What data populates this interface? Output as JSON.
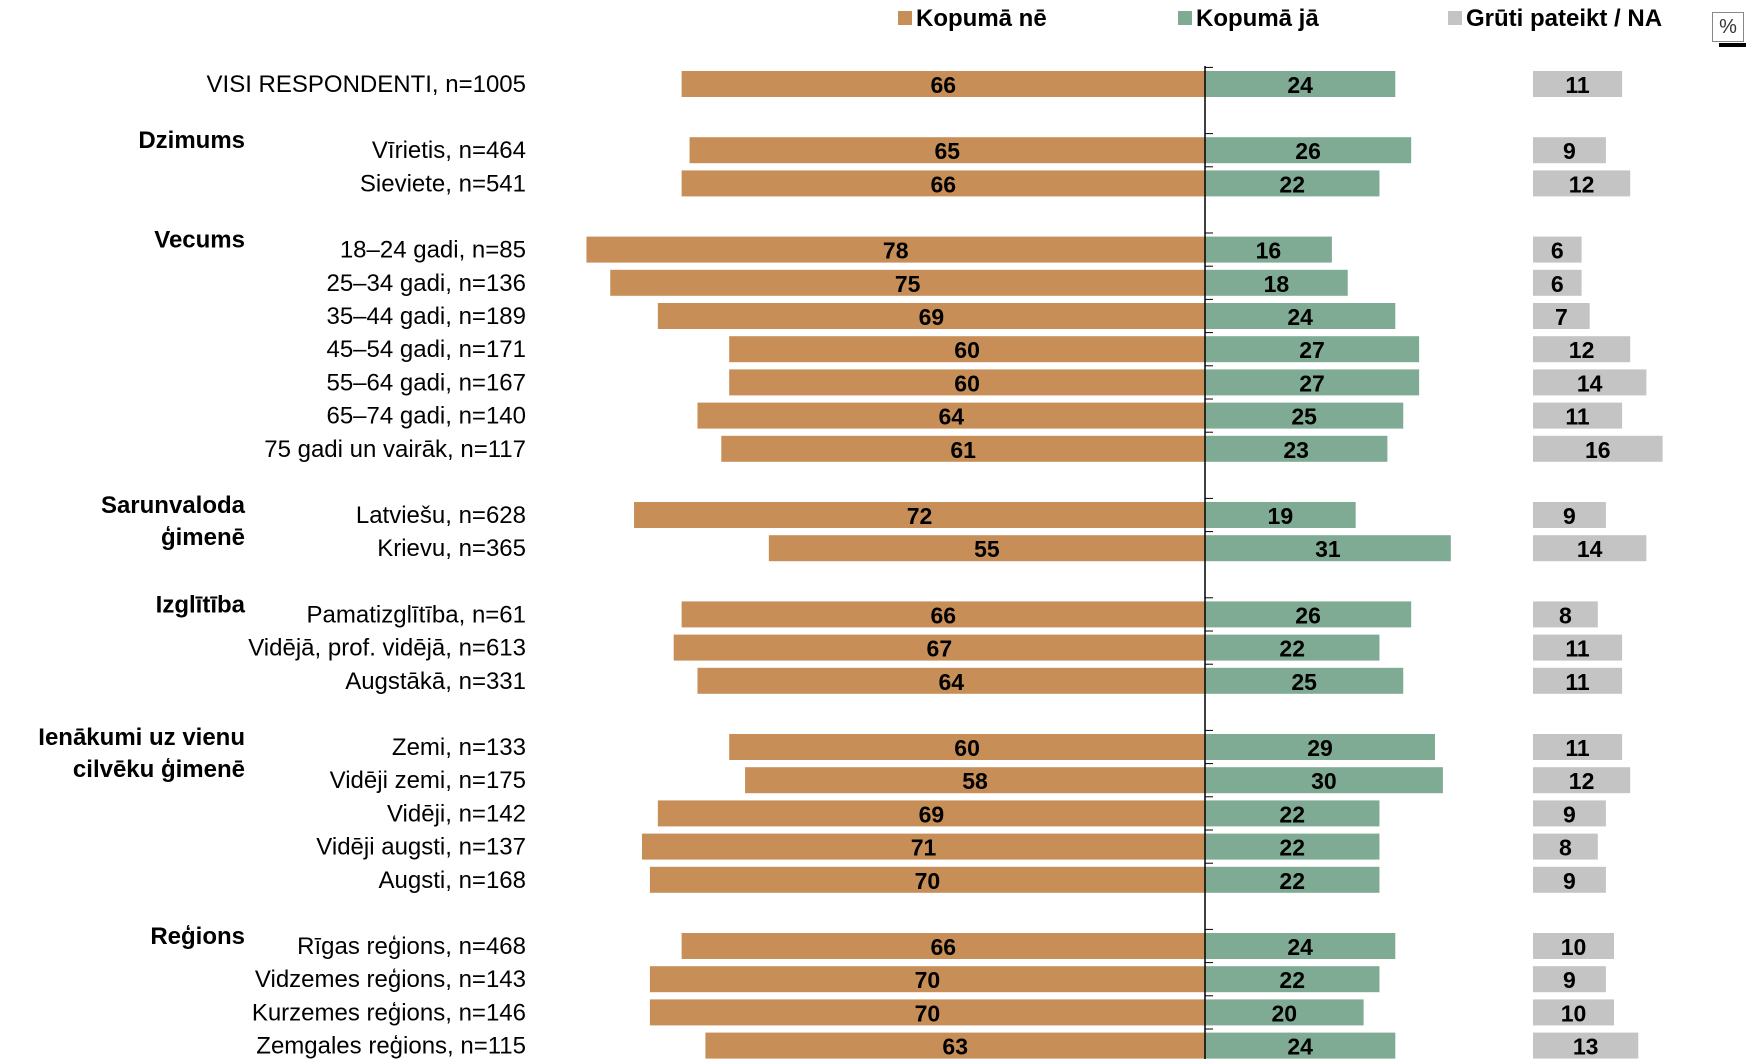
{
  "legend": {
    "no_label": "Kopumā nē",
    "yes_label": "Kopumā jā",
    "na_label": "Grūti pateikt / NA"
  },
  "unit": "%",
  "colors": {
    "no": "#c78f57",
    "yes": "#7fab94",
    "na": "#c4c4c4",
    "axis": "#000000"
  },
  "chart_data": {
    "type": "bar",
    "orientation": "horizontal",
    "series": [
      {
        "name": "Kopumā nē",
        "key": "no"
      },
      {
        "name": "Kopumā jā",
        "key": "yes"
      },
      {
        "name": "Grūti pateikt / NA",
        "key": "na"
      }
    ],
    "groups": [
      {
        "title": [],
        "rows": [
          {
            "label": "VISI RESPONDENTI, n=1005",
            "no": 66,
            "yes": 24,
            "na": 11
          }
        ]
      },
      {
        "title": [
          "Dzimums"
        ],
        "rows": [
          {
            "label": "Vīrietis, n=464",
            "no": 65,
            "yes": 26,
            "na": 9
          },
          {
            "label": "Sieviete, n=541",
            "no": 66,
            "yes": 22,
            "na": 12
          }
        ]
      },
      {
        "title": [
          "Vecums"
        ],
        "rows": [
          {
            "label": "18–24 gadi, n=85",
            "no": 78,
            "yes": 16,
            "na": 6
          },
          {
            "label": "25–34 gadi, n=136",
            "no": 75,
            "yes": 18,
            "na": 6
          },
          {
            "label": "35–44 gadi, n=189",
            "no": 69,
            "yes": 24,
            "na": 7
          },
          {
            "label": "45–54 gadi, n=171",
            "no": 60,
            "yes": 27,
            "na": 12
          },
          {
            "label": "55–64 gadi, n=167",
            "no": 60,
            "yes": 27,
            "na": 14
          },
          {
            "label": "65–74 gadi, n=140",
            "no": 64,
            "yes": 25,
            "na": 11
          },
          {
            "label": "75 gadi un vairāk, n=117",
            "no": 61,
            "yes": 23,
            "na": 16
          }
        ]
      },
      {
        "title": [
          "Sarunvaloda",
          "ģimenē"
        ],
        "rows": [
          {
            "label": "Latviešu, n=628",
            "no": 72,
            "yes": 19,
            "na": 9
          },
          {
            "label": "Krievu, n=365",
            "no": 55,
            "yes": 31,
            "na": 14
          }
        ]
      },
      {
        "title": [
          "Izglītība"
        ],
        "rows": [
          {
            "label": "Pamatizglītība, n=61",
            "no": 66,
            "yes": 26,
            "na": 8
          },
          {
            "label": "Vidējā, prof. vidējā, n=613",
            "no": 67,
            "yes": 22,
            "na": 11
          },
          {
            "label": "Augstākā, n=331",
            "no": 64,
            "yes": 25,
            "na": 11
          }
        ]
      },
      {
        "title": [
          "Ienākumi uz vienu",
          "cilvēku ģimenē"
        ],
        "rows": [
          {
            "label": "Zemi, n=133",
            "no": 60,
            "yes": 29,
            "na": 11
          },
          {
            "label": "Vidēji zemi, n=175",
            "no": 58,
            "yes": 30,
            "na": 12
          },
          {
            "label": "Vidēji, n=142",
            "no": 69,
            "yes": 22,
            "na": 9
          },
          {
            "label": "Vidēji augsti, n=137",
            "no": 71,
            "yes": 22,
            "na": 8
          },
          {
            "label": "Augsti, n=168",
            "no": 70,
            "yes": 22,
            "na": 9
          }
        ]
      },
      {
        "title": [
          "Reģions"
        ],
        "rows": [
          {
            "label": "Rīgas reģions, n=468",
            "no": 66,
            "yes": 24,
            "na": 10
          },
          {
            "label": "Vidzemes reģions, n=143",
            "no": 70,
            "yes": 22,
            "na": 9
          },
          {
            "label": "Kurzemes reģions, n=146",
            "no": 70,
            "yes": 20,
            "na": 10
          },
          {
            "label": "Zemgales reģions, n=115",
            "no": 63,
            "yes": 24,
            "na": 13
          }
        ]
      }
    ]
  }
}
